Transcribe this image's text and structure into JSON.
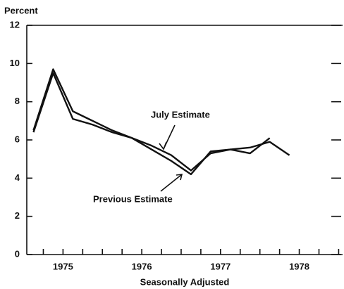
{
  "chart_data": {
    "type": "line",
    "title": "Percent",
    "x_label": "Seasonally Adjusted",
    "x": [
      1975.125,
      1975.375,
      1975.625,
      1975.875,
      1976.125,
      1976.375,
      1976.625,
      1976.875,
      1977.125,
      1977.375,
      1977.625,
      1977.875,
      1978.125,
      1978.375
    ],
    "series": [
      {
        "name": "July Estimate",
        "color": "#111111",
        "values": [
          6.5,
          9.7,
          7.5,
          7.0,
          6.5,
          6.1,
          5.7,
          5.2,
          4.4,
          5.3,
          5.5,
          5.6,
          5.9,
          5.2
        ]
      },
      {
        "name": "Previous Estimate",
        "color": "#111111",
        "values": [
          6.4,
          9.5,
          7.1,
          6.8,
          6.4,
          6.1,
          5.5,
          4.9,
          4.2,
          5.4,
          5.5,
          5.3,
          6.1,
          null
        ]
      }
    ],
    "xlim": [
      1975.04,
      1979.05
    ],
    "xticks": [
      {
        "value": 1975.5,
        "label": "1975"
      },
      {
        "value": 1976.5,
        "label": "1976"
      },
      {
        "value": 1977.5,
        "label": "1977"
      },
      {
        "value": 1978.5,
        "label": "1978"
      }
    ],
    "x_minor_ticks": [
      1975.25,
      1975.5,
      1975.75,
      1976,
      1976.25,
      1976.5,
      1976.75,
      1977,
      1977.25,
      1977.5,
      1977.75,
      1978,
      1978.25,
      1978.5,
      1978.75,
      1979
    ],
    "ylim": [
      0,
      12
    ],
    "yticks": [
      0,
      2,
      4,
      6,
      8,
      10,
      12
    ]
  }
}
